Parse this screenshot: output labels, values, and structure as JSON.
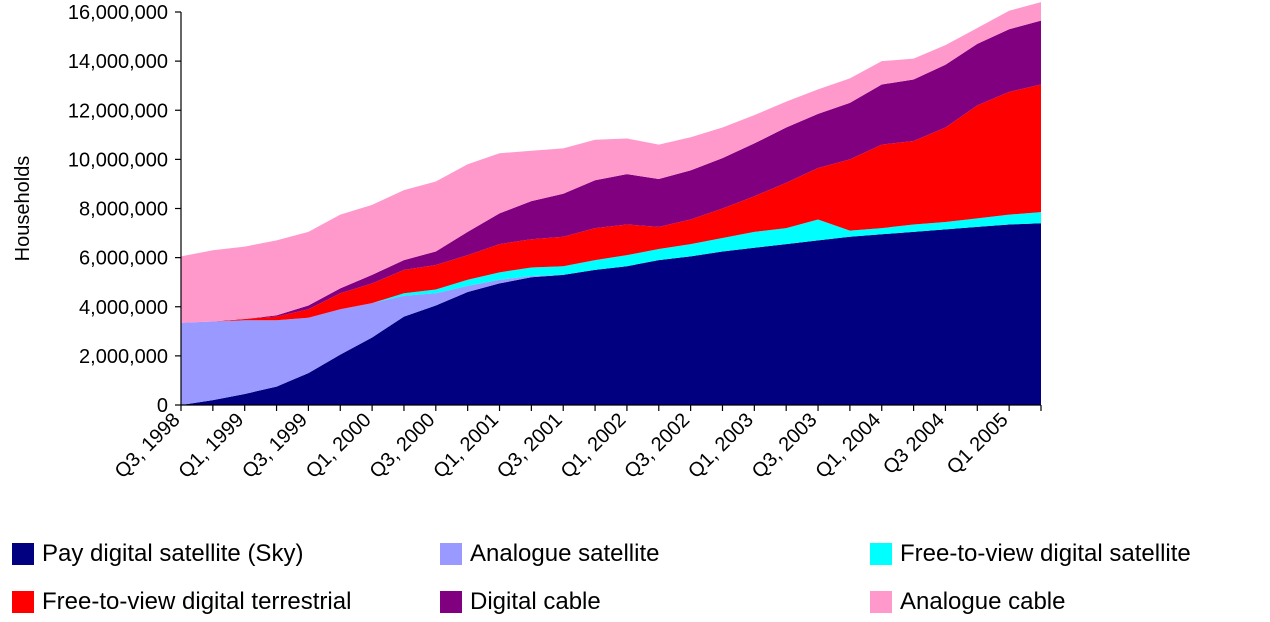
{
  "chart_data": {
    "type": "area",
    "stacked": true,
    "title": "",
    "xlabel": "",
    "ylabel": "Households",
    "ylim": [
      0,
      16000000
    ],
    "yticks": [
      0,
      2000000,
      4000000,
      6000000,
      8000000,
      10000000,
      12000000,
      14000000,
      16000000
    ],
    "ytick_labels": [
      "0",
      "2,000,000",
      "4,000,000",
      "6,000,000",
      "8,000,000",
      "10,000,000",
      "12,000,000",
      "14,000,000",
      "16,000,000"
    ],
    "x": [
      "Q3, 1998",
      "Q4, 1998",
      "Q1, 1999",
      "Q2, 1999",
      "Q3, 1999",
      "Q4, 1999",
      "Q1, 2000",
      "Q2, 2000",
      "Q3, 2000",
      "Q4, 2000",
      "Q1, 2001",
      "Q2, 2001",
      "Q3, 2001",
      "Q4, 2001",
      "Q1, 2002",
      "Q2, 2002",
      "Q3, 2002",
      "Q4, 2002",
      "Q1, 2003",
      "Q2, 2003",
      "Q3, 2003",
      "Q4, 2003",
      "Q1, 2004",
      "Q2, 2004",
      "Q3 2004",
      "Q4 2004",
      "Q1 2005",
      "Q2 2005"
    ],
    "xtick_labels_shown": [
      "Q3, 1998",
      "Q1, 1999",
      "Q3, 1999",
      "Q1, 2000",
      "Q3, 2000",
      "Q1, 2001",
      "Q3, 2001",
      "Q1, 2002",
      "Q3, 2002",
      "Q1, 2003",
      "Q3, 2003",
      "Q1, 2004",
      "Q3 2004",
      "Q1 2005"
    ],
    "series": [
      {
        "name": "Pay digital satellite (Sky)",
        "color": "#000080",
        "values": [
          0,
          200000,
          450000,
          750000,
          1300000,
          2050000,
          2750000,
          3600000,
          4050000,
          4600000,
          4950000,
          5200000,
          5300000,
          5500000,
          5650000,
          5900000,
          6050000,
          6250000,
          6400000,
          6550000,
          6700000,
          6850000,
          6950000,
          7050000,
          7150000,
          7250000,
          7350000,
          7400000
        ]
      },
      {
        "name": "Analogue satellite",
        "color": "#9999FF",
        "values": [
          3350000,
          3200000,
          3000000,
          2700000,
          2250000,
          1850000,
          1400000,
          850000,
          500000,
          250000,
          150000,
          50000,
          0,
          0,
          0,
          0,
          0,
          0,
          0,
          0,
          0,
          0,
          0,
          0,
          0,
          0,
          0,
          0
        ]
      },
      {
        "name": "Free-to-view digital satellite",
        "color": "#00FFFF",
        "values": [
          0,
          0,
          0,
          0,
          0,
          0,
          0,
          100000,
          150000,
          250000,
          300000,
          350000,
          350000,
          400000,
          450000,
          450000,
          500000,
          550000,
          650000,
          650000,
          850000,
          250000,
          250000,
          300000,
          300000,
          350000,
          400000,
          450000
        ]
      },
      {
        "name": "Free-to-view digital terrestrial",
        "color": "#FF0000",
        "values": [
          0,
          0,
          50000,
          150000,
          350000,
          650000,
          800000,
          950000,
          1000000,
          1000000,
          1150000,
          1150000,
          1200000,
          1300000,
          1250000,
          900000,
          1000000,
          1200000,
          1450000,
          1850000,
          2100000,
          2900000,
          3400000,
          3400000,
          3850000,
          4600000,
          5000000,
          5200000
        ]
      },
      {
        "name": "Digital cable",
        "color": "#800080",
        "values": [
          0,
          0,
          0,
          50000,
          150000,
          200000,
          350000,
          400000,
          550000,
          950000,
          1250000,
          1550000,
          1750000,
          1950000,
          2050000,
          1950000,
          2000000,
          2050000,
          2150000,
          2250000,
          2200000,
          2300000,
          2450000,
          2500000,
          2550000,
          2500000,
          2550000,
          2600000
        ]
      },
      {
        "name": "Analogue cable",
        "color": "#FF99CC",
        "values": [
          2700000,
          2900000,
          2950000,
          3050000,
          3000000,
          3000000,
          2850000,
          2850000,
          2850000,
          2750000,
          2450000,
          2050000,
          1850000,
          1650000,
          1450000,
          1400000,
          1350000,
          1250000,
          1150000,
          1050000,
          1000000,
          1000000,
          950000,
          850000,
          800000,
          650000,
          750000,
          750000
        ]
      }
    ],
    "legend": {
      "position": "bottom"
    }
  }
}
